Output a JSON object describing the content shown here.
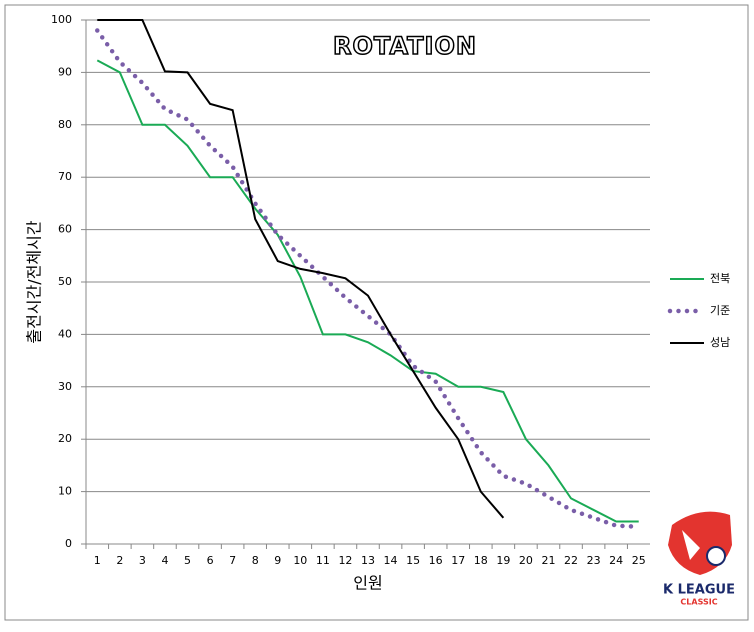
{
  "chart_data": {
    "type": "line",
    "title": "ROTATION",
    "y_label": "출전시간/전체시간",
    "x_label": "인원",
    "categories": [
      "1",
      "2",
      "3",
      "4",
      "5",
      "6",
      "7",
      "8",
      "9",
      "10",
      "11",
      "12",
      "13",
      "14",
      "15",
      "16",
      "17",
      "18",
      "19",
      "20",
      "21",
      "22",
      "23",
      "24",
      "25"
    ],
    "series": [
      {
        "name": "전북",
        "color": "#1aaa55",
        "style": "solid",
        "values": [
          92.3,
          90,
          80,
          80,
          76,
          70,
          70,
          64,
          59,
          51,
          40,
          40,
          38.5,
          36,
          33,
          32.5,
          30,
          30,
          29,
          20,
          15,
          8.7,
          6.5,
          4.3,
          4.3
        ]
      },
      {
        "name": "기준",
        "color": "#7a5ea8",
        "style": "dotted",
        "values": [
          98,
          92,
          88,
          83,
          81,
          76,
          72,
          65,
          59,
          55,
          51,
          47,
          43.5,
          40,
          34,
          31,
          24,
          17.5,
          13,
          11.5,
          9,
          6.5,
          5,
          3.5,
          3.3
        ]
      },
      {
        "name": "성남",
        "color": "#000000",
        "style": "solid",
        "values": [
          100,
          100,
          100,
          90.2,
          90,
          84,
          82.8,
          62,
          54,
          52.5,
          51.7,
          50.7,
          47.4,
          40,
          33,
          26,
          20,
          10,
          5,
          null,
          null,
          null,
          null,
          null,
          null
        ]
      }
    ],
    "ylim": [
      0,
      100
    ],
    "yticks": [
      0,
      10,
      20,
      30,
      40,
      50,
      60,
      70,
      80,
      90,
      100
    ],
    "grid": true,
    "legend": "right",
    "logo": {
      "name": "K LEAGUE",
      "sub": "CLASSIC"
    }
  }
}
